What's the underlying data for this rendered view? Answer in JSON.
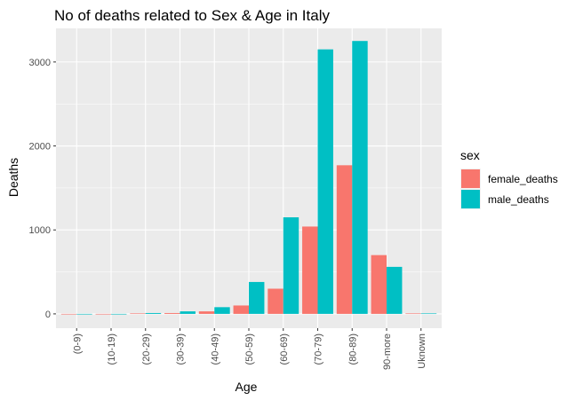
{
  "chart_data": {
    "type": "bar",
    "title": "No of deaths related to Sex & Age in Italy",
    "xlabel": "Age",
    "ylabel": "Deaths",
    "categories": [
      "(0-9)",
      "(10-19)",
      "(20-29)",
      "(30-39)",
      "(40-49)",
      "(50-59)",
      "(60-69)",
      "(70-79)",
      "(80-89)",
      "90-more",
      "Uknown"
    ],
    "series": [
      {
        "name": "female_deaths",
        "color": "#F8766D",
        "values": [
          0,
          0,
          5,
          10,
          30,
          100,
          300,
          1040,
          1770,
          700,
          5
        ]
      },
      {
        "name": "male_deaths",
        "color": "#00BFC4",
        "values": [
          0,
          0,
          10,
          30,
          80,
          380,
          1150,
          3150,
          3250,
          560,
          5
        ]
      }
    ],
    "yticks": [
      0,
      1000,
      2000,
      3000
    ],
    "ytick_labels": [
      "0",
      "1000",
      "2000",
      "3000"
    ],
    "ylim": [
      -170,
      3400
    ],
    "grid": true,
    "panel_background": "#EBEBEB",
    "grid_color": "#FFFFFF",
    "legend": {
      "title": "sex",
      "position": "right"
    }
  }
}
